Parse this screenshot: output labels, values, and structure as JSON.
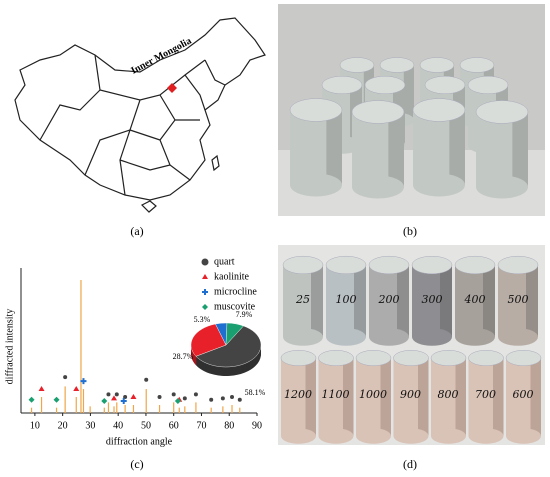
{
  "panels": {
    "a": "(a)",
    "b": "(b)",
    "c": "(c)",
    "d": "(d)"
  },
  "map": {
    "label": "Inner Mongolia"
  },
  "photo_d": {
    "top_row": [
      "25",
      "100",
      "200",
      "300",
      "400",
      "500"
    ],
    "bottom_row": [
      "1200",
      "1100",
      "1000",
      "900",
      "800",
      "700",
      "600"
    ]
  },
  "chart_data": {
    "type": "stem",
    "x_label": "diffraction angle",
    "y_label": "diffracted intensity",
    "xlim": [
      5,
      90
    ],
    "xticks": [
      10,
      20,
      30,
      40,
      50,
      60,
      70,
      80,
      90
    ],
    "ylim": [
      0,
      100
    ],
    "pattern": {
      "color": "#f0a548",
      "x": [
        8.8,
        12.4,
        17.8,
        20.9,
        24.9,
        26.6,
        27.5,
        29.9,
        35,
        36.5,
        38.5,
        39.5,
        42.5,
        45.5,
        50.1,
        54.9,
        60,
        62,
        64,
        68,
        73.5,
        77.7,
        81,
        83.8
      ],
      "values": [
        4,
        12,
        4,
        20,
        12,
        100,
        18,
        5,
        4,
        8,
        5,
        8,
        6,
        6,
        18,
        6,
        8,
        4,
        5,
        8,
        4,
        5,
        6,
        4
      ]
    },
    "series": [
      {
        "name": "quart",
        "color": "#444444",
        "marker": "circle",
        "x": [
          20.9,
          36.5,
          39.5,
          42.5,
          50.1,
          54.9,
          60,
          64,
          68,
          73.5,
          77.7,
          81,
          83.8
        ],
        "values": [
          27,
          14,
          14,
          12,
          25,
          12,
          14,
          11,
          14,
          10,
          11,
          12,
          10
        ]
      },
      {
        "name": "kaolinite",
        "color": "#e8202a",
        "marker": "triangle",
        "x": [
          12.4,
          24.9,
          38.5,
          45.5,
          62
        ],
        "values": [
          18,
          18,
          11,
          12,
          10
        ]
      },
      {
        "name": "microcline",
        "color": "#1f6fd0",
        "marker": "cross",
        "x": [
          27.5,
          42
        ],
        "values": [
          24,
          9
        ]
      },
      {
        "name": "muscovite",
        "color": "#1aa070",
        "marker": "diamond",
        "x": [
          8.8,
          17.8,
          35,
          61.5
        ],
        "values": [
          10,
          10,
          9,
          9
        ]
      }
    ],
    "inset": {
      "type": "pie",
      "values": [
        58.1,
        28.7,
        5.3,
        7.9
      ],
      "value_labels": [
        "58.1%",
        "28.7%",
        "5.3%",
        "7.9%"
      ]
    }
  }
}
